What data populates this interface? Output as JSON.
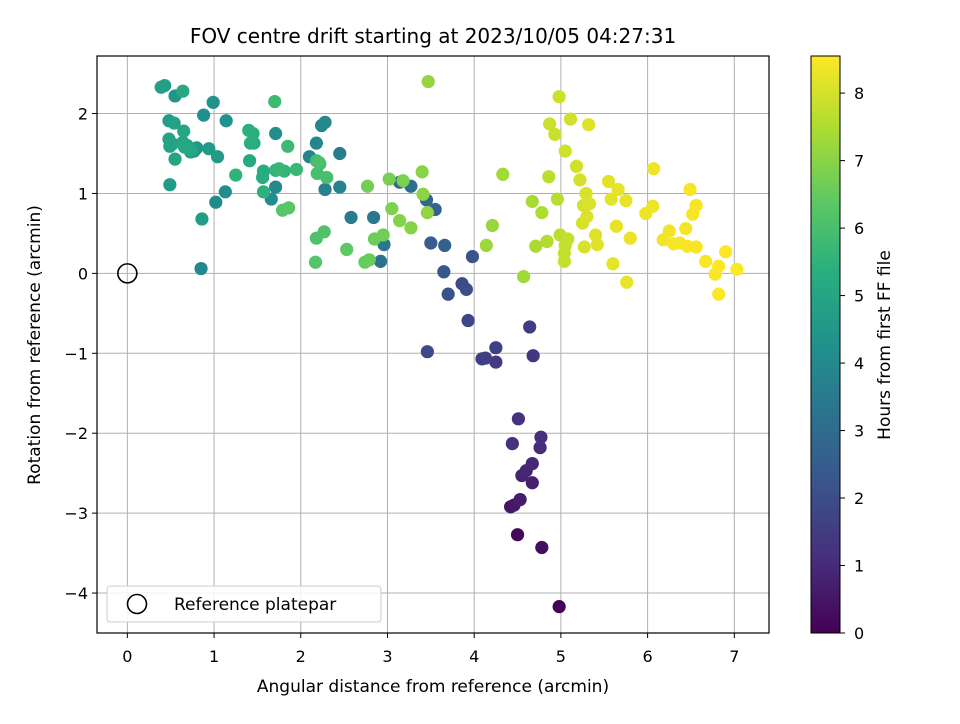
{
  "chart_data": {
    "type": "scatter",
    "title": "FOV centre drift starting at 2023/10/05 04:27:31",
    "xlabel": "Angular distance from reference (arcmin)",
    "ylabel": "Rotation from reference (arcmin)",
    "xlim": [
      -0.35,
      7.4
    ],
    "ylim": [
      -4.5,
      2.72
    ],
    "xticks": [
      "0",
      "1",
      "2",
      "3",
      "4",
      "5",
      "6",
      "7"
    ],
    "yticks": [
      "2",
      "1",
      "0",
      "−1",
      "−2",
      "−3",
      "−4"
    ],
    "grid": true,
    "legend": {
      "placement": "lower-left",
      "entries": [
        "Reference platepar"
      ]
    },
    "reference_point": {
      "x": 0,
      "y": 0
    },
    "colorbar": {
      "label": "Hours from first FF file",
      "colormap": "viridis",
      "range": [
        0,
        8.55
      ],
      "ticks": [
        "0",
        "1",
        "2",
        "3",
        "4",
        "5",
        "6",
        "7",
        "8"
      ]
    },
    "points": [
      [
        4.98,
        -4.17,
        0.05
      ],
      [
        4.5,
        -3.27,
        0.2
      ],
      [
        4.78,
        -3.43,
        0.35
      ],
      [
        4.42,
        -2.92,
        0.5
      ],
      [
        4.46,
        -2.9,
        0.55
      ],
      [
        4.53,
        -2.83,
        0.65
      ],
      [
        4.67,
        -2.62,
        0.75
      ],
      [
        4.55,
        -2.53,
        0.85
      ],
      [
        4.6,
        -2.47,
        0.9
      ],
      [
        4.67,
        -2.38,
        0.95
      ],
      [
        4.76,
        -2.18,
        1.05
      ],
      [
        4.77,
        -2.05,
        1.15
      ],
      [
        4.44,
        -2.13,
        1.2
      ],
      [
        4.51,
        -1.82,
        1.25
      ],
      [
        4.25,
        -1.11,
        1.45
      ],
      [
        4.13,
        -1.06,
        1.55
      ],
      [
        4.09,
        -1.07,
        1.6
      ],
      [
        4.25,
        -0.93,
        1.65
      ],
      [
        4.68,
        -1.03,
        1.35
      ],
      [
        4.64,
        -0.67,
        1.5
      ],
      [
        3.93,
        -0.59,
        1.8
      ],
      [
        3.46,
        -0.98,
        1.9
      ],
      [
        3.86,
        -0.13,
        1.95
      ],
      [
        3.91,
        -0.2,
        2.0
      ],
      [
        3.7,
        -0.26,
        2.1
      ],
      [
        3.98,
        0.21,
        2.2
      ],
      [
        3.65,
        0.02,
        2.3
      ],
      [
        3.5,
        0.38,
        2.5
      ],
      [
        3.66,
        0.35,
        2.6
      ],
      [
        3.55,
        0.8,
        2.75
      ],
      [
        3.45,
        0.92,
        2.85
      ],
      [
        3.14,
        1.14,
        3.0
      ],
      [
        3.27,
        1.09,
        3.1
      ],
      [
        2.92,
        0.15,
        3.2
      ],
      [
        2.96,
        0.36,
        3.3
      ],
      [
        2.84,
        0.7,
        3.4
      ],
      [
        2.58,
        0.7,
        3.5
      ],
      [
        2.45,
        1.5,
        3.6
      ],
      [
        2.28,
        1.05,
        3.7
      ],
      [
        2.45,
        1.08,
        3.75
      ],
      [
        2.1,
        1.46,
        3.8
      ],
      [
        2.18,
        1.63,
        3.85
      ],
      [
        2.24,
        1.85,
        3.9
      ],
      [
        2.28,
        1.89,
        3.95
      ],
      [
        1.71,
        1.08,
        3.98
      ],
      [
        0.85,
        0.06,
        4.0
      ],
      [
        1.02,
        0.89,
        4.05
      ],
      [
        1.13,
        1.02,
        4.1
      ],
      [
        1.66,
        0.93,
        4.15
      ],
      [
        1.71,
        1.75,
        4.2
      ],
      [
        0.88,
        1.98,
        4.25
      ],
      [
        1.14,
        1.91,
        4.3
      ],
      [
        0.99,
        2.14,
        4.35
      ],
      [
        0.55,
        2.22,
        4.4
      ],
      [
        0.73,
        1.52,
        4.45
      ],
      [
        0.8,
        1.57,
        4.5
      ],
      [
        0.77,
        1.53,
        4.55
      ],
      [
        0.94,
        1.56,
        4.6
      ],
      [
        1.04,
        1.46,
        4.62
      ],
      [
        0.49,
        1.11,
        4.65
      ],
      [
        0.86,
        0.68,
        4.7
      ],
      [
        0.39,
        2.33,
        4.75
      ],
      [
        0.43,
        2.35,
        4.78
      ],
      [
        0.48,
        1.91,
        4.8
      ],
      [
        0.54,
        1.88,
        4.85
      ],
      [
        0.49,
        1.59,
        4.88
      ],
      [
        0.48,
        1.68,
        4.9
      ],
      [
        0.52,
        1.62,
        4.92
      ],
      [
        0.55,
        1.43,
        4.95
      ],
      [
        0.66,
        1.58,
        4.98
      ],
      [
        0.64,
        1.64,
        5.0
      ],
      [
        0.65,
        1.78,
        5.05
      ],
      [
        0.69,
        1.6,
        5.08
      ],
      [
        0.73,
        1.54,
        5.1
      ],
      [
        0.64,
        2.28,
        5.12
      ],
      [
        1.41,
        1.41,
        5.15
      ],
      [
        1.46,
        1.63,
        5.2
      ],
      [
        1.57,
        1.28,
        5.25
      ],
      [
        1.56,
        1.2,
        5.3
      ],
      [
        1.42,
        1.63,
        5.35
      ],
      [
        1.4,
        1.79,
        5.38
      ],
      [
        1.45,
        1.75,
        5.4
      ],
      [
        1.57,
        1.02,
        5.45
      ],
      [
        1.25,
        1.23,
        5.5
      ],
      [
        1.71,
        1.29,
        5.55
      ],
      [
        1.81,
        1.28,
        5.6
      ],
      [
        1.75,
        1.31,
        5.65
      ],
      [
        1.95,
        1.3,
        5.7
      ],
      [
        1.85,
        1.59,
        5.75
      ],
      [
        1.7,
        2.15,
        5.8
      ],
      [
        2.18,
        1.41,
        5.85
      ],
      [
        2.22,
        1.37,
        5.9
      ],
      [
        2.19,
        1.25,
        5.95
      ],
      [
        2.3,
        1.2,
        6.0
      ],
      [
        2.21,
        1.39,
        6.05
      ],
      [
        2.18,
        0.44,
        6.1
      ],
      [
        2.27,
        0.52,
        6.15
      ],
      [
        2.17,
        0.14,
        6.2
      ],
      [
        1.79,
        0.79,
        6.25
      ],
      [
        1.86,
        0.82,
        6.3
      ],
      [
        2.53,
        0.3,
        6.4
      ],
      [
        2.74,
        0.14,
        6.5
      ],
      [
        2.79,
        0.17,
        6.55
      ],
      [
        2.85,
        0.43,
        6.6
      ],
      [
        2.95,
        0.48,
        6.65
      ],
      [
        2.77,
        1.09,
        6.7
      ],
      [
        3.02,
        1.18,
        6.75
      ],
      [
        3.18,
        1.16,
        6.8
      ],
      [
        3.05,
        0.81,
        6.85
      ],
      [
        3.14,
        0.66,
        6.9
      ],
      [
        3.27,
        0.57,
        6.95
      ],
      [
        3.4,
        1.27,
        7.0
      ],
      [
        3.41,
        0.99,
        7.05
      ],
      [
        3.46,
        0.76,
        7.1
      ],
      [
        3.47,
        2.4,
        7.15
      ],
      [
        4.21,
        0.6,
        7.2
      ],
      [
        4.14,
        0.35,
        7.25
      ],
      [
        4.57,
        -0.04,
        7.3
      ],
      [
        4.33,
        1.24,
        7.35
      ],
      [
        4.67,
        0.9,
        7.4
      ],
      [
        4.71,
        0.34,
        7.45
      ],
      [
        4.78,
        0.76,
        7.5
      ],
      [
        4.84,
        0.4,
        7.55
      ],
      [
        4.96,
        0.93,
        7.6
      ],
      [
        4.86,
        1.21,
        7.65
      ],
      [
        4.99,
        0.48,
        7.7
      ],
      [
        5.05,
        0.35,
        7.75
      ],
      [
        5.04,
        0.25,
        7.78
      ],
      [
        5.04,
        0.15,
        7.8
      ],
      [
        5.08,
        0.43,
        7.82
      ],
      [
        4.93,
        1.74,
        7.85
      ],
      [
        4.87,
        1.87,
        7.87
      ],
      [
        4.98,
        2.21,
        7.9
      ],
      [
        5.05,
        1.53,
        7.92
      ],
      [
        5.11,
        1.93,
        7.94
      ],
      [
        5.18,
        1.34,
        7.96
      ],
      [
        5.22,
        1.17,
        7.98
      ],
      [
        5.26,
        0.85,
        8.0
      ],
      [
        5.25,
        0.63,
        8.02
      ],
      [
        5.27,
        0.33,
        8.04
      ],
      [
        5.29,
        1.0,
        8.06
      ],
      [
        5.3,
        0.71,
        8.08
      ],
      [
        5.33,
        0.87,
        8.1
      ],
      [
        5.32,
        1.86,
        8.12
      ],
      [
        5.4,
        0.48,
        8.14
      ],
      [
        5.42,
        0.36,
        8.16
      ],
      [
        5.55,
        1.15,
        8.18
      ],
      [
        5.58,
        0.93,
        8.2
      ],
      [
        5.6,
        0.12,
        8.22
      ],
      [
        5.66,
        1.05,
        8.24
      ],
      [
        5.64,
        0.59,
        8.25
      ],
      [
        5.75,
        0.91,
        8.26
      ],
      [
        5.76,
        -0.11,
        8.28
      ],
      [
        5.8,
        0.44,
        8.3
      ],
      [
        5.98,
        0.75,
        8.32
      ],
      [
        6.06,
        0.84,
        8.34
      ],
      [
        6.07,
        1.31,
        8.36
      ],
      [
        6.18,
        0.42,
        8.38
      ],
      [
        6.25,
        0.53,
        8.4
      ],
      [
        6.3,
        0.37,
        8.41
      ],
      [
        6.37,
        0.38,
        8.42
      ],
      [
        6.44,
        0.56,
        8.43
      ],
      [
        6.46,
        0.34,
        8.44
      ],
      [
        6.49,
        1.05,
        8.45
      ],
      [
        6.52,
        0.74,
        8.46
      ],
      [
        6.56,
        0.85,
        8.47
      ],
      [
        6.56,
        0.33,
        8.48
      ],
      [
        6.67,
        0.15,
        8.49
      ],
      [
        6.78,
        -0.01,
        8.5
      ],
      [
        6.82,
        0.09,
        8.51
      ],
      [
        6.82,
        -0.26,
        8.52
      ],
      [
        6.9,
        0.27,
        8.53
      ],
      [
        7.03,
        0.05,
        8.54
      ]
    ]
  }
}
